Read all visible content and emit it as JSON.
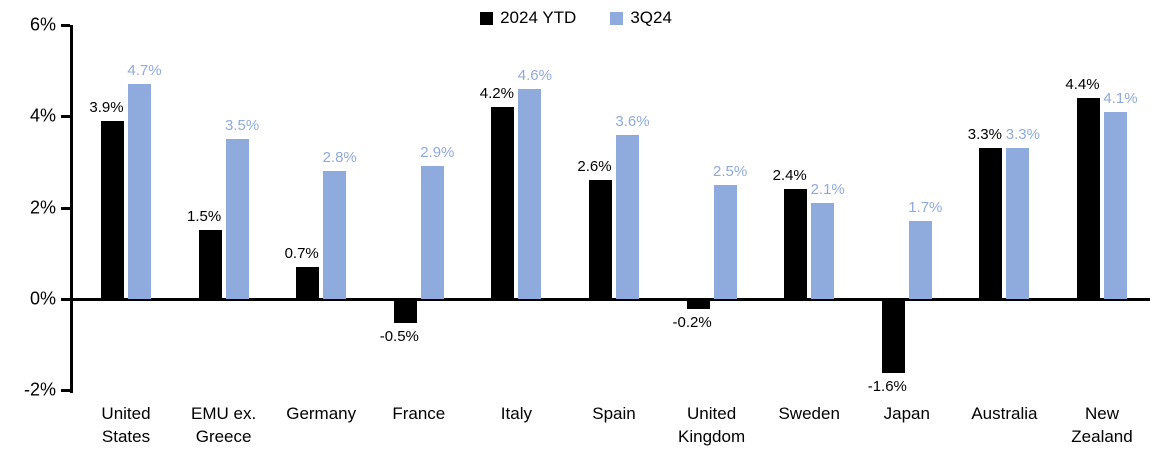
{
  "chart_data": {
    "type": "bar",
    "title": "",
    "xlabel": "",
    "ylabel": "",
    "categories": [
      "United States",
      "EMU ex. Greece",
      "Germany",
      "France",
      "Italy",
      "Spain",
      "United Kingdom",
      "Sweden",
      "Japan",
      "Australia",
      "New Zealand"
    ],
    "series": [
      {
        "name": "2024 YTD",
        "color": "#000000",
        "label_color": "#000000",
        "values": [
          3.9,
          1.5,
          0.7,
          -0.5,
          4.2,
          2.6,
          -0.2,
          2.4,
          -1.6,
          3.3,
          4.4
        ],
        "labels": [
          "3.9%",
          "1.5%",
          "0.7%",
          "-0.5%",
          "4.2%",
          "2.6%",
          "-0.2%",
          "2.4%",
          "-1.6%",
          "3.3%",
          "4.4%"
        ]
      },
      {
        "name": "3Q24",
        "color": "#8FAADC",
        "label_color": "#8FAADC",
        "values": [
          4.7,
          3.5,
          2.8,
          2.9,
          4.6,
          3.6,
          2.5,
          2.1,
          1.7,
          3.3,
          4.1
        ],
        "labels": [
          "4.7%",
          "3.5%",
          "2.8%",
          "2.9%",
          "4.6%",
          "3.6%",
          "2.5%",
          "2.1%",
          "1.7%",
          "3.3%",
          "4.1%"
        ]
      }
    ],
    "ylim": [
      -2,
      6
    ],
    "y_ticks": [
      {
        "value": 6,
        "label": "6%"
      },
      {
        "value": 4,
        "label": "4%"
      },
      {
        "value": 2,
        "label": "2%"
      },
      {
        "value": 0,
        "label": "0%"
      },
      {
        "value": -2,
        "label": "-2%"
      }
    ],
    "grid": false,
    "legend_position": "top-center",
    "axis_color": "#000000"
  }
}
